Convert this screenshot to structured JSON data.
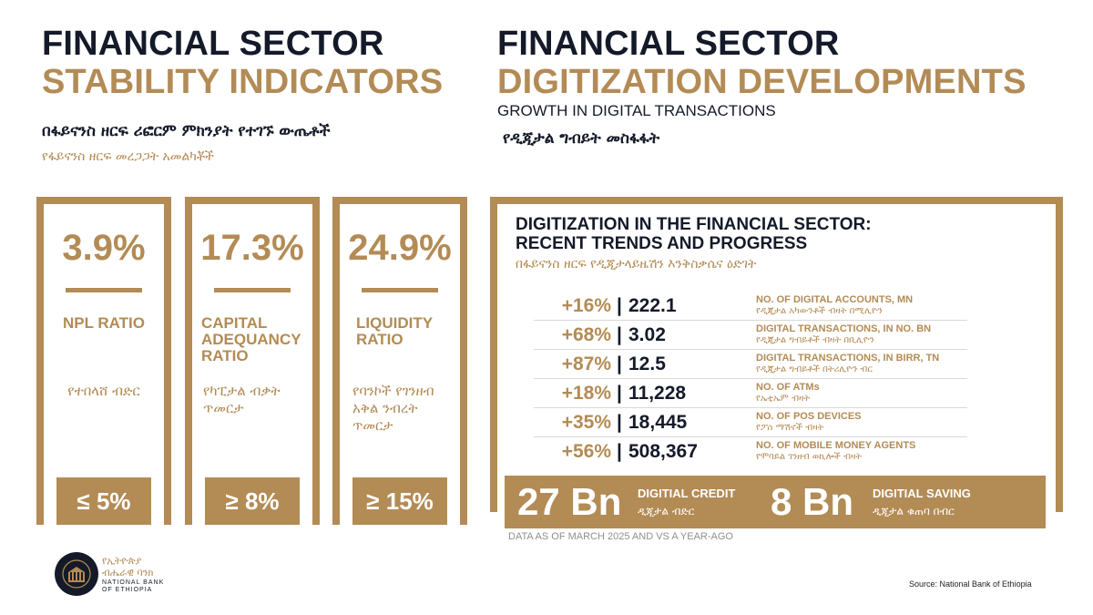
{
  "left": {
    "title_line1": "FINANCIAL SECTOR",
    "title_line2": "STABILITY INDICATORS",
    "subtitle_amh": "በፋይናንስ ዘርፍ ሪፎርም ምክንያት የተገኙ ውጤቶች",
    "subtitle_amh2": "የፋይናንስ ዘርፍ መረጋጋት አመልካቾች",
    "indicators": [
      {
        "value": "3.9%",
        "label_lines": [
          "NPL RATIO"
        ],
        "label_amh_lines": [
          "የተበላሸ ብድር"
        ],
        "benchmark": "≤ 5%"
      },
      {
        "value": "17.3%",
        "label_lines": [
          "CAPITAL",
          "ADEQUANCY",
          "RATIO"
        ],
        "label_amh_lines": [
          "የካፒታል ብቃት",
          "ጥመርታ"
        ],
        "benchmark": "≥ 8%"
      },
      {
        "value": "24.9%",
        "label_lines": [
          "LIQUIDITY",
          "RATIO"
        ],
        "label_amh_lines": [
          "የባንኮች የገንዘብ",
          "አቅል ንብረት",
          "ጥመርታ"
        ],
        "benchmark": "≥ 15%"
      }
    ]
  },
  "right": {
    "title_line1": "FINANCIAL SECTOR",
    "title_line2": "DIGITIZATION DEVELOPMENTS",
    "subtitle": "GROWTH IN DIGITAL TRANSACTIONS",
    "subtitle_amh": "የዲጂታል ግብይት መስፋፋት",
    "box_title_line1": "DIGITIZATION IN THE FINANCIAL SECTOR:",
    "box_title_line2": "RECENT TRENDS AND PROGRESS",
    "box_subtitle_amh": "በፋይናንስ ዘርፍ የዲጂታላይዜሽን እንቅስቃሴና ዕድገት",
    "separator": "|",
    "rows": [
      {
        "pct": "+16%",
        "value": "222.1",
        "label": "NO. OF DIGITAL ACCOUNTS, MN",
        "label_amh": "የዲጂታል አካውንቶች ብዛት በሚሊዮን"
      },
      {
        "pct": "+68%",
        "value": "3.02",
        "label": "DIGITAL TRANSACTIONS, IN NO. BN",
        "label_amh": "የዲጂታል ግብይቶች ብዛት በቢሊዮን"
      },
      {
        "pct": "+87%",
        "value": "12.5",
        "label": "DIGITAL TRANSACTIONS, IN BIRR, TN",
        "label_amh": "የዲጂታል ግብይቶች በትሪሊዮን ብር"
      },
      {
        "pct": "+18%",
        "value": "11,228",
        "label": "NO. OF ATMs",
        "label_amh": "የኤቲኤም ብዛት"
      },
      {
        "pct": "+35%",
        "value": "18,445",
        "label": "NO. OF POS DEVICES",
        "label_amh": "የፖስ ማሽኖች ብዛት"
      },
      {
        "pct": "+56%",
        "value": "508,367",
        "label": "NO. OF MOBILE MONEY AGENTS",
        "label_amh": "የሞባይል ገንዘብ ወኪሎች ብዛት"
      }
    ],
    "credit": {
      "value": "27 Bn",
      "label": "DIGITIAL CREDIT",
      "label_amh": "ዲጂታል ብድር"
    },
    "saving": {
      "value": "8 Bn",
      "label": "DIGITIAL SAVING",
      "label_amh": "ዲጂታል ቁጠባ በብር"
    },
    "note": "DATA AS OF MARCH 2025 AND VS A YEAR-AGO"
  },
  "footer": {
    "logo_amh_line1": "የኢትዮጵያ",
    "logo_amh_line2": "ብሔራዊ ባንክ",
    "logo_en_line1": "NATIONAL BANK",
    "logo_en_line2": "OF ETHIOPIA",
    "source": "Source: National Bank of Ethiopia"
  },
  "colors": {
    "gold": "#b38b55",
    "navy": "#141a29",
    "rule": "#d9d9d9"
  }
}
